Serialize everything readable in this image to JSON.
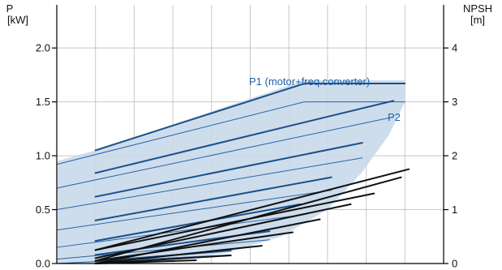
{
  "colors": {
    "envelope": "#c9d9ea",
    "blue_line": "#1a4f8b",
    "blue_thin": "#2a64a6",
    "black_line": "#111111",
    "grid": "#c8c8c8",
    "label": "#1f5fa8"
  },
  "chart_data": {
    "type": "line",
    "title": "",
    "axes": {
      "left": {
        "label_line1": "P",
        "label_line2": "[kW]",
        "ylim": [
          0.0,
          2.4
        ],
        "ticks": [
          {
            "value": 0.0,
            "label": "0.0"
          },
          {
            "value": 0.5,
            "label": "0.5"
          },
          {
            "value": 1.0,
            "label": "1.0"
          },
          {
            "value": 1.5,
            "label": "1.5"
          },
          {
            "value": 2.0,
            "label": "2.0"
          }
        ]
      },
      "right": {
        "label_line1": "NPSH",
        "label_line2": "[m]",
        "ylim": [
          0,
          4.8
        ],
        "ticks": [
          {
            "value": 0,
            "label": "0"
          },
          {
            "value": 1,
            "label": "1"
          },
          {
            "value": 2,
            "label": "2"
          },
          {
            "value": 3,
            "label": "3"
          },
          {
            "value": 4,
            "label": "4"
          }
        ]
      },
      "x": {
        "label": "",
        "xlim": [
          0,
          100
        ],
        "gridlines": 10,
        "tick_labels": []
      }
    },
    "grid": true,
    "annotations": {
      "p1": "P1 (motor+freq.converter)",
      "p2": "P2"
    },
    "envelope": {
      "axis": "left",
      "points": [
        [
          0,
          0.0
        ],
        [
          0,
          0.95
        ],
        [
          10,
          1.05
        ],
        [
          64,
          1.7
        ],
        [
          90,
          1.7
        ],
        [
          90,
          1.5
        ],
        [
          86,
          1.2
        ],
        [
          79,
          0.85
        ],
        [
          70,
          0.5
        ],
        [
          58,
          0.25
        ],
        [
          44,
          0.1
        ],
        [
          32,
          0.04
        ],
        [
          22,
          0.0
        ]
      ]
    },
    "series_p1": [
      {
        "axis": "left",
        "x": [
          10,
          64,
          90
        ],
        "y": [
          1.05,
          1.67,
          1.67
        ]
      },
      {
        "axis": "left",
        "x": [
          10,
          87
        ],
        "y": [
          0.84,
          1.51
        ]
      },
      {
        "axis": "left",
        "x": [
          10,
          79
        ],
        "y": [
          0.62,
          1.12
        ]
      },
      {
        "axis": "left",
        "x": [
          10,
          71
        ],
        "y": [
          0.4,
          0.8
        ]
      },
      {
        "axis": "left",
        "x": [
          10,
          63
        ],
        "y": [
          0.21,
          0.55
        ]
      },
      {
        "axis": "left",
        "x": [
          10,
          55
        ],
        "y": [
          0.08,
          0.3
        ]
      },
      {
        "axis": "left",
        "x": [
          10,
          45
        ],
        "y": [
          0.02,
          0.12
        ]
      }
    ],
    "series_p2": [
      {
        "axis": "left",
        "x": [
          0,
          64,
          90
        ],
        "y": [
          0.92,
          1.5,
          1.5
        ]
      },
      {
        "axis": "left",
        "x": [
          0,
          87
        ],
        "y": [
          0.7,
          1.36
        ]
      },
      {
        "axis": "left",
        "x": [
          0,
          79
        ],
        "y": [
          0.5,
          0.98
        ]
      },
      {
        "axis": "left",
        "x": [
          0,
          71
        ],
        "y": [
          0.31,
          0.68
        ]
      },
      {
        "axis": "left",
        "x": [
          0,
          63
        ],
        "y": [
          0.15,
          0.45
        ]
      },
      {
        "axis": "left",
        "x": [
          0,
          55
        ],
        "y": [
          0.04,
          0.22
        ]
      },
      {
        "axis": "left",
        "x": [
          0,
          45
        ],
        "y": [
          0.0,
          0.08
        ]
      }
    ],
    "series_npsh": [
      {
        "axis": "right",
        "x": [
          10,
          91
        ],
        "y": [
          0.25,
          1.75
        ]
      },
      {
        "axis": "right",
        "x": [
          10,
          89
        ],
        "y": [
          0.05,
          1.6
        ]
      },
      {
        "axis": "right",
        "x": [
          10,
          82
        ],
        "y": [
          0.25,
          1.3
        ]
      },
      {
        "axis": "right",
        "x": [
          10,
          76
        ],
        "y": [
          0.1,
          1.1
        ]
      },
      {
        "axis": "right",
        "x": [
          10,
          68
        ],
        "y": [
          0.0,
          0.82
        ]
      },
      {
        "axis": "right",
        "x": [
          10,
          61
        ],
        "y": [
          0.05,
          0.58
        ]
      },
      {
        "axis": "right",
        "x": [
          10,
          53
        ],
        "y": [
          0.0,
          0.33
        ]
      },
      {
        "axis": "right",
        "x": [
          10,
          45
        ],
        "y": [
          0.0,
          0.15
        ]
      },
      {
        "axis": "right",
        "x": [
          10,
          36
        ],
        "y": [
          0.0,
          0.06
        ]
      }
    ]
  }
}
